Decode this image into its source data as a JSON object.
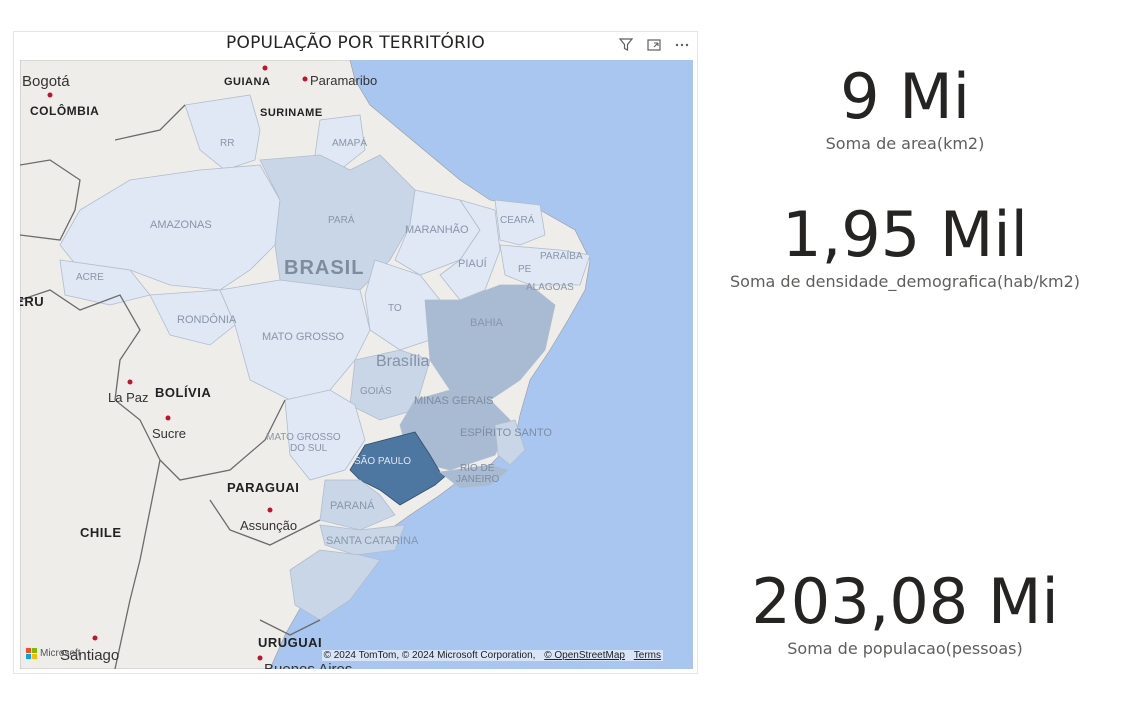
{
  "map": {
    "title": "POPULAÇÃO POR TERRITÓRIO",
    "toolbar": {
      "filter_icon": "filter-icon",
      "focus_icon": "focus-mode-icon",
      "more_icon": "more-options-icon"
    },
    "colors": {
      "ocean": "#a9c6f0",
      "land": "#eeedea",
      "border": "#6b6b6b",
      "state_light": "#dfe8f4",
      "state_mid": "#c9d6e7",
      "state_dark": "#a9bbd2",
      "state_darker": "#8aa3c2",
      "state_max": "#4d76a0"
    },
    "labels": {
      "bogota": "Bogotá",
      "colombia": "COLÔMBIA",
      "guiana": "GUIANA",
      "paramaribo": "Paramaribo",
      "suriname": "SURINAME",
      "rr": "RR",
      "amapa": "AMAPÁ",
      "amazonas": "AMAZONAS",
      "para": "PARÁ",
      "maranhao": "MARANHÃO",
      "ceara": "CEARÁ",
      "brasil": "BRASIL",
      "piaui": "PIAUÍ",
      "paraiba": "PARAÍBA",
      "pe": "PE",
      "alagoas": "ALAGOAS",
      "acre": "ACRE",
      "peru": "PERU",
      "to": "TO",
      "rondonia": "RONDÔNIA",
      "bahia": "BAHIA",
      "mato_grosso": "MATO GROSSO",
      "brasilia": "Brasília",
      "goias": "GOIÁS",
      "minas_gerais": "MINAS GERAIS",
      "la_paz": "La Paz",
      "bolivia": "BOLÍVIA",
      "sucre": "Sucre",
      "ms_line1": "MATO GROSSO",
      "ms_line2": "DO SUL",
      "espirito_santo": "ESPÍRITO SANTO",
      "sao_paulo": "SÃO PAULO",
      "rj_line1": "RIO DE",
      "rj_line2": "JANEIRO",
      "paraguai": "PARAGUAI",
      "assuncao": "Assunção",
      "parana": "PARANÁ",
      "chile": "CHILE",
      "santa_catarina": "SANTA CATARINA",
      "uruguai": "URUGUAI",
      "santiago": "Santiago",
      "buenos_aires": "Buenos Aires"
    },
    "attribution": "© 2024 TomTom, © 2024 Microsoft Corporation,",
    "osm_link": "© OpenStreetMap",
    "terms_link": "Terms",
    "microsoft_logo": "Microsoft"
  },
  "cards": [
    {
      "value": "9 Mi",
      "label": "Soma de area(km2)"
    },
    {
      "value": "1,95 Mil",
      "label": "Soma de densidade_demografica(hab/km2)"
    },
    {
      "value": "203,08 Mi",
      "label": "Soma de populacao(pessoas)"
    }
  ]
}
